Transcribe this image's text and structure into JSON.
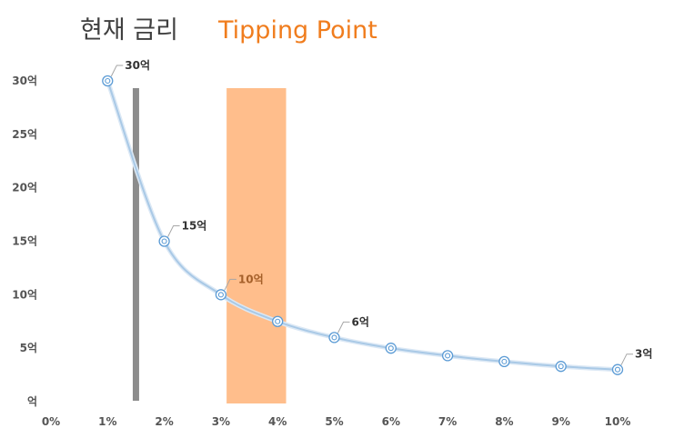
{
  "chart_data": {
    "type": "line",
    "title": "",
    "xlabel": "",
    "ylabel": "",
    "x_ticks": [
      "0%",
      "1%",
      "2%",
      "3%",
      "4%",
      "5%",
      "6%",
      "7%",
      "8%",
      "9%",
      "10%"
    ],
    "y_ticks": [
      "억",
      "5억",
      "10억",
      "15억",
      "20억",
      "25억",
      "30억"
    ],
    "xlim": [
      0,
      10
    ],
    "ylim": [
      0,
      30
    ],
    "grid": false,
    "series": [
      {
        "x": [
          1,
          2,
          3,
          4,
          5,
          6,
          7,
          8,
          9,
          10
        ],
        "values": [
          30,
          15,
          10,
          7.5,
          6,
          5,
          4.3,
          3.75,
          3.3,
          3
        ]
      }
    ],
    "data_labels": [
      {
        "x": 1,
        "text": "30억",
        "color": "#333333"
      },
      {
        "x": 2,
        "text": "15억",
        "color": "#333333"
      },
      {
        "x": 3,
        "text": "10억",
        "color": "#a5602a"
      },
      {
        "x": 5,
        "text": "6억",
        "color": "#333333"
      },
      {
        "x": 10,
        "text": "3억",
        "color": "#333333"
      }
    ],
    "annotations": {
      "current_rate": {
        "text": "현재 금리",
        "x": 1.5,
        "color": "#8c8c8c"
      },
      "tipping_point": {
        "text": "Tipping Point",
        "x_range": [
          3.1,
          4.15
        ],
        "color": "#ffbe8c",
        "text_color": "#f07d1e"
      }
    },
    "colors": {
      "line": "#a9c9e6",
      "marker": "#5b9bd5"
    }
  }
}
